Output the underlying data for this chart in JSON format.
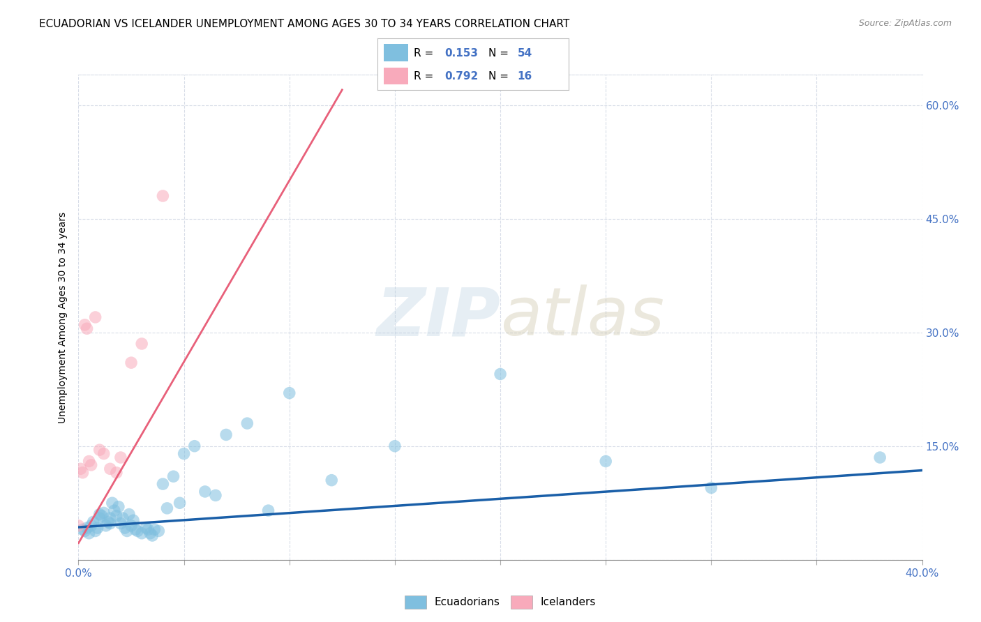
{
  "title": "ECUADORIAN VS ICELANDER UNEMPLOYMENT AMONG AGES 30 TO 34 YEARS CORRELATION CHART",
  "source": "Source: ZipAtlas.com",
  "ylabel": "Unemployment Among Ages 30 to 34 years",
  "yticks": [
    0.0,
    0.15,
    0.3,
    0.45,
    0.6
  ],
  "ytick_labels": [
    "",
    "15.0%",
    "30.0%",
    "45.0%",
    "60.0%"
  ],
  "xticks": [
    0.0,
    0.05,
    0.1,
    0.15,
    0.2,
    0.25,
    0.3,
    0.35,
    0.4
  ],
  "xlim": [
    0.0,
    0.4
  ],
  "ylim": [
    0.0,
    0.64
  ],
  "blue_scatter_x": [
    0.002,
    0.003,
    0.004,
    0.005,
    0.006,
    0.007,
    0.008,
    0.009,
    0.01,
    0.01,
    0.011,
    0.012,
    0.013,
    0.014,
    0.015,
    0.015,
    0.016,
    0.017,
    0.018,
    0.019,
    0.02,
    0.021,
    0.022,
    0.023,
    0.024,
    0.025,
    0.026,
    0.027,
    0.028,
    0.03,
    0.032,
    0.033,
    0.034,
    0.035,
    0.036,
    0.038,
    0.04,
    0.042,
    0.045,
    0.048,
    0.05,
    0.055,
    0.06,
    0.065,
    0.07,
    0.08,
    0.09,
    0.1,
    0.12,
    0.15,
    0.2,
    0.25,
    0.3,
    0.38
  ],
  "blue_scatter_y": [
    0.04,
    0.038,
    0.042,
    0.035,
    0.045,
    0.05,
    0.038,
    0.042,
    0.06,
    0.055,
    0.058,
    0.062,
    0.045,
    0.05,
    0.048,
    0.055,
    0.075,
    0.065,
    0.058,
    0.07,
    0.048,
    0.055,
    0.042,
    0.038,
    0.06,
    0.045,
    0.052,
    0.04,
    0.038,
    0.035,
    0.042,
    0.04,
    0.035,
    0.032,
    0.04,
    0.038,
    0.1,
    0.068,
    0.11,
    0.075,
    0.14,
    0.15,
    0.09,
    0.085,
    0.165,
    0.18,
    0.065,
    0.22,
    0.105,
    0.15,
    0.245,
    0.13,
    0.095,
    0.135
  ],
  "pink_scatter_x": [
    0.0,
    0.001,
    0.002,
    0.003,
    0.004,
    0.005,
    0.006,
    0.008,
    0.01,
    0.012,
    0.015,
    0.018,
    0.02,
    0.025,
    0.03,
    0.04
  ],
  "pink_scatter_y": [
    0.045,
    0.12,
    0.115,
    0.31,
    0.305,
    0.13,
    0.125,
    0.32,
    0.145,
    0.14,
    0.12,
    0.115,
    0.135,
    0.26,
    0.285,
    0.48
  ],
  "blue_line_x": [
    0.0,
    0.4
  ],
  "blue_line_y": [
    0.043,
    0.118
  ],
  "pink_line_x": [
    0.0,
    0.125
  ],
  "pink_line_y": [
    0.022,
    0.62
  ],
  "scatter_color_blue": "#7fbfdf",
  "scatter_color_pink": "#f8aabb",
  "line_color_blue": "#1a5fa8",
  "line_color_pink": "#e8607a",
  "bg_color": "#ffffff",
  "grid_color": "#d8dde8",
  "title_fontsize": 11,
  "source_fontsize": 9,
  "tick_color": "#4472c4",
  "tick_fontsize": 11
}
